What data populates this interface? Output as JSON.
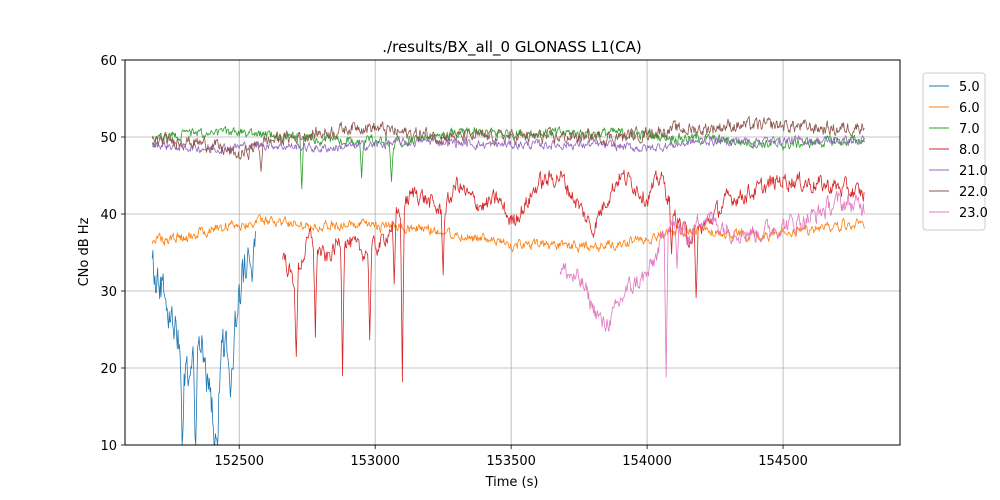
{
  "chart_data": {
    "type": "line",
    "title": "./results/BX_all_0 GLONASS L1(CA)",
    "xlabel": "Time (s)",
    "ylabel": "CNo dB Hz",
    "xlim": [
      152080,
      154930
    ],
    "ylim": [
      10,
      60
    ],
    "xticks": [
      152500,
      153000,
      153500,
      154000,
      154500
    ],
    "xtick_labels": [
      "152500",
      "153000",
      "153500",
      "154000",
      "154500"
    ],
    "yticks": [
      10,
      20,
      30,
      40,
      50,
      60
    ],
    "ytick_labels": [
      "10",
      "20",
      "30",
      "40",
      "50",
      "60"
    ],
    "grid": true,
    "legend_position": "outside-right-top",
    "series": [
      {
        "name": "5.0",
        "color": "#1f77b4",
        "x": [
          152180,
          152200,
          152230,
          152260,
          152290,
          152320,
          152350,
          152380,
          152410,
          152440,
          152470,
          152500,
          152530,
          152560
        ],
        "values": [
          33,
          31,
          29,
          26,
          22,
          16,
          24,
          20,
          12,
          23,
          18,
          30,
          34,
          35
        ],
        "noise": 3
      },
      {
        "name": "6.0",
        "color": "#ff7f0e",
        "x": [
          152180,
          152300,
          152450,
          152600,
          152800,
          153000,
          153200,
          153350,
          153500,
          153700,
          153900,
          154000,
          154200,
          154400,
          154600,
          154800
        ],
        "values": [
          36.5,
          37,
          38.5,
          39,
          38.5,
          38.5,
          38,
          37,
          36,
          35.8,
          36,
          37,
          38,
          37,
          38,
          39
        ],
        "noise": 0.7
      },
      {
        "name": "7.0",
        "color": "#2ca02c",
        "x": [
          152180,
          152300,
          152500,
          152700,
          152900,
          153100,
          153300,
          153500,
          153700,
          153900,
          154100,
          154300,
          154500,
          154700,
          154800
        ],
        "values": [
          49.5,
          50.5,
          50.5,
          50,
          49.5,
          49.5,
          50.5,
          50.5,
          50.5,
          50.5,
          50,
          49.5,
          49,
          49.5,
          49.5
        ],
        "noise": 0.7
      },
      {
        "name": "8.0",
        "color": "#d62728",
        "x": [
          152660,
          152700,
          152760,
          152820,
          152880,
          152950,
          153020,
          153100,
          153150,
          153250,
          153300,
          153350,
          153400,
          153450,
          153500,
          153550,
          153600,
          153680,
          153750,
          153800,
          153850,
          153900,
          153950,
          154000,
          154050,
          154100,
          154150,
          154200,
          154250,
          154300,
          154400,
          154500,
          154600,
          154700,
          154800
        ],
        "values": [
          35,
          31,
          37,
          34,
          37,
          35,
          36,
          41,
          43,
          40,
          44,
          42,
          41,
          42,
          39,
          41,
          44,
          45,
          41,
          38,
          42,
          45,
          44,
          42,
          45,
          40,
          37,
          38,
          40,
          42,
          43,
          44.5,
          44,
          43.5,
          42.5
        ],
        "noise": 1.2
      },
      {
        "name": "21.0",
        "color": "#9467bd",
        "x": [
          152180,
          152400,
          152600,
          152800,
          153000,
          153200,
          153400,
          153600,
          153800,
          154000,
          154200,
          154400,
          154600,
          154800
        ],
        "values": [
          49,
          48.5,
          49,
          48.5,
          49,
          49.5,
          49,
          49,
          49,
          48.5,
          49.5,
          49.5,
          49.5,
          49.5
        ],
        "noise": 0.6
      },
      {
        "name": "22.0",
        "color": "#8c564b",
        "x": [
          152180,
          152300,
          152400,
          152500,
          152600,
          152800,
          152950,
          153100,
          153300,
          153500,
          153700,
          153900,
          154000,
          154100,
          154200,
          154300,
          154500,
          154700,
          154800
        ],
        "values": [
          49.5,
          49.5,
          49,
          47.5,
          49.5,
          50.5,
          51.5,
          50.5,
          50,
          50,
          50,
          50,
          50.5,
          51,
          51,
          51.5,
          51.5,
          51,
          51.5
        ],
        "noise": 0.9
      },
      {
        "name": "23.0",
        "color": "#e377c2",
        "x": [
          153680,
          153720,
          153760,
          153800,
          153840,
          153880,
          153920,
          153960,
          154000,
          154040,
          154080,
          154120,
          154160,
          154200,
          154300,
          154400,
          154500,
          154600,
          154700,
          154800
        ],
        "values": [
          33,
          32,
          31,
          28,
          25.5,
          27,
          30,
          31,
          32,
          35,
          39,
          38,
          37,
          40,
          38,
          37.5,
          38.5,
          39.5,
          41.5,
          41
        ],
        "noise": 1.3
      }
    ],
    "spikes": [
      {
        "series": "5.0",
        "x": 152290,
        "y": 10
      },
      {
        "series": "5.0",
        "x": 152340,
        "y": 10
      },
      {
        "series": "5.0",
        "x": 152420,
        "y": 10
      },
      {
        "series": "5.0",
        "x": 152465,
        "y": 15
      },
      {
        "series": "7.0",
        "x": 152730,
        "y": 43
      },
      {
        "series": "7.0",
        "x": 152950,
        "y": 45
      },
      {
        "series": "7.0",
        "x": 153060,
        "y": 45
      },
      {
        "series": "8.0",
        "x": 152710,
        "y": 21
      },
      {
        "series": "8.0",
        "x": 152780,
        "y": 24
      },
      {
        "series": "8.0",
        "x": 152880,
        "y": 20
      },
      {
        "series": "8.0",
        "x": 152980,
        "y": 24
      },
      {
        "series": "8.0",
        "x": 153070,
        "y": 30
      },
      {
        "series": "8.0",
        "x": 153100,
        "y": 18
      },
      {
        "series": "8.0",
        "x": 153250,
        "y": 33
      },
      {
        "series": "8.0",
        "x": 154090,
        "y": 34
      },
      {
        "series": "8.0",
        "x": 154180,
        "y": 28
      },
      {
        "series": "23.0",
        "x": 154070,
        "y": 20
      },
      {
        "series": "23.0",
        "x": 154110,
        "y": 32
      },
      {
        "series": "22.0",
        "x": 152580,
        "y": 46
      }
    ]
  }
}
